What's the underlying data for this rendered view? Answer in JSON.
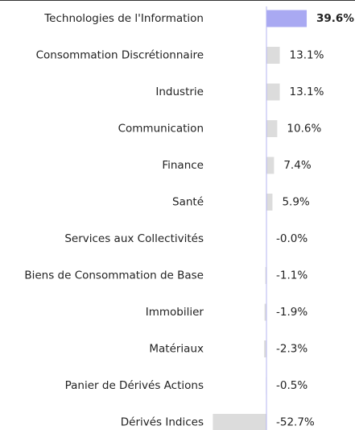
{
  "chart_data": {
    "type": "hbar",
    "categories": [
      "Technologies de l'Information",
      "Consommation Discrétionnaire",
      "Industrie",
      "Communication",
      "Finance",
      "Santé",
      "Services aux Collectivités",
      "Biens de Consommation de Base",
      "Immobilier",
      "Matériaux",
      "Panier de Dérivés Actions",
      "Dérivés Indices"
    ],
    "values": [
      39.6,
      13.1,
      13.1,
      10.6,
      7.4,
      5.9,
      -0.0,
      -1.1,
      -1.9,
      -2.3,
      -0.5,
      -52.7
    ],
    "value_labels": [
      "39.6%",
      "13.1%",
      "13.1%",
      "10.6%",
      "7.4%",
      "5.9%",
      "-0.0%",
      "-1.1%",
      "-1.9%",
      "-2.3%",
      "-0.5%",
      "-52.7%"
    ],
    "colors": [
      "#a9a9f2",
      "#dcdcdc",
      "#dcdcdc",
      "#dcdcdc",
      "#dcdcdc",
      "#dcdcdc",
      "#dcdcdc",
      "#dcdcdc",
      "#dcdcdc",
      "#dcdcdc",
      "#dcdcdc",
      "#dcdcdc"
    ],
    "label_colors": [
      "#a0a0ee",
      "#333333",
      "#333333",
      "#333333",
      "#333333",
      "#333333",
      "#333333",
      "#333333",
      "#333333",
      "#333333",
      "#333333",
      "#333333"
    ],
    "xlim": [
      -60,
      60
    ]
  }
}
